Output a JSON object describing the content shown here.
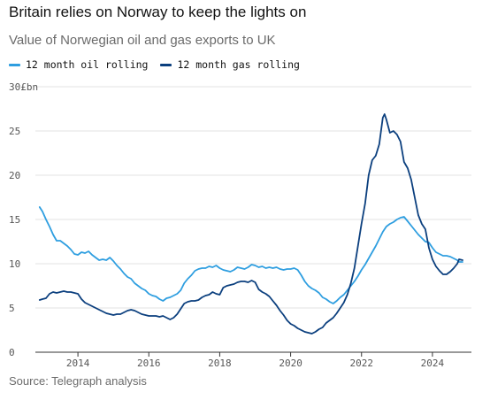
{
  "title": "Britain relies on Norway to keep the lights on",
  "subtitle": "Value of Norwegian oil and gas exports to UK",
  "source": "Source: Telegraph analysis",
  "colors": {
    "oil": "#2e9ee0",
    "gas": "#0b3f7e",
    "grid": "#e3e3e3",
    "axis": "#333333"
  },
  "chart_data": {
    "type": "line",
    "ylim": [
      0,
      30
    ],
    "xlim": [
      2012.8,
      2025.1
    ],
    "y_ticks": [
      0,
      5,
      10,
      15,
      20,
      25,
      30
    ],
    "y_tick_labels": [
      "0",
      "5",
      "10",
      "15",
      "20",
      "25",
      "30£bn"
    ],
    "x_ticks": [
      2014,
      2016,
      2018,
      2020,
      2022,
      2024
    ],
    "x_tick_labels": [
      "2014",
      "2016",
      "2018",
      "2020",
      "2022",
      "2024"
    ],
    "series": [
      {
        "name": "12 month oil rolling",
        "color": "#2e9ee0",
        "points": [
          [
            2012.92,
            16.4
          ],
          [
            2013.0,
            15.9
          ],
          [
            2013.1,
            15.0
          ],
          [
            2013.2,
            14.2
          ],
          [
            2013.3,
            13.3
          ],
          [
            2013.4,
            12.6
          ],
          [
            2013.5,
            12.6
          ],
          [
            2013.6,
            12.3
          ],
          [
            2013.7,
            12.0
          ],
          [
            2013.8,
            11.6
          ],
          [
            2013.9,
            11.1
          ],
          [
            2014.0,
            11.0
          ],
          [
            2014.1,
            11.3
          ],
          [
            2014.2,
            11.2
          ],
          [
            2014.3,
            11.4
          ],
          [
            2014.4,
            11.0
          ],
          [
            2014.5,
            10.7
          ],
          [
            2014.6,
            10.4
          ],
          [
            2014.7,
            10.5
          ],
          [
            2014.8,
            10.4
          ],
          [
            2014.9,
            10.7
          ],
          [
            2015.0,
            10.3
          ],
          [
            2015.1,
            9.8
          ],
          [
            2015.2,
            9.4
          ],
          [
            2015.3,
            8.9
          ],
          [
            2015.4,
            8.5
          ],
          [
            2015.5,
            8.3
          ],
          [
            2015.6,
            7.8
          ],
          [
            2015.7,
            7.5
          ],
          [
            2015.8,
            7.2
          ],
          [
            2015.9,
            7.0
          ],
          [
            2016.0,
            6.6
          ],
          [
            2016.1,
            6.4
          ],
          [
            2016.2,
            6.3
          ],
          [
            2016.3,
            6.0
          ],
          [
            2016.4,
            5.8
          ],
          [
            2016.5,
            6.1
          ],
          [
            2016.6,
            6.2
          ],
          [
            2016.7,
            6.4
          ],
          [
            2016.8,
            6.6
          ],
          [
            2016.9,
            7.0
          ],
          [
            2017.0,
            7.8
          ],
          [
            2017.1,
            8.3
          ],
          [
            2017.2,
            8.7
          ],
          [
            2017.3,
            9.2
          ],
          [
            2017.4,
            9.4
          ],
          [
            2017.5,
            9.5
          ],
          [
            2017.6,
            9.5
          ],
          [
            2017.7,
            9.7
          ],
          [
            2017.8,
            9.6
          ],
          [
            2017.9,
            9.8
          ],
          [
            2018.0,
            9.5
          ],
          [
            2018.1,
            9.3
          ],
          [
            2018.2,
            9.2
          ],
          [
            2018.3,
            9.1
          ],
          [
            2018.4,
            9.3
          ],
          [
            2018.5,
            9.6
          ],
          [
            2018.6,
            9.5
          ],
          [
            2018.7,
            9.4
          ],
          [
            2018.8,
            9.6
          ],
          [
            2018.9,
            9.9
          ],
          [
            2019.0,
            9.8
          ],
          [
            2019.1,
            9.6
          ],
          [
            2019.2,
            9.7
          ],
          [
            2019.3,
            9.5
          ],
          [
            2019.4,
            9.6
          ],
          [
            2019.5,
            9.5
          ],
          [
            2019.6,
            9.6
          ],
          [
            2019.7,
            9.4
          ],
          [
            2019.8,
            9.3
          ],
          [
            2019.9,
            9.4
          ],
          [
            2020.0,
            9.4
          ],
          [
            2020.1,
            9.5
          ],
          [
            2020.2,
            9.3
          ],
          [
            2020.3,
            8.7
          ],
          [
            2020.4,
            8.0
          ],
          [
            2020.5,
            7.5
          ],
          [
            2020.6,
            7.2
          ],
          [
            2020.7,
            7.0
          ],
          [
            2020.8,
            6.7
          ],
          [
            2020.9,
            6.2
          ],
          [
            2021.0,
            6.0
          ],
          [
            2021.1,
            5.7
          ],
          [
            2021.2,
            5.5
          ],
          [
            2021.3,
            5.8
          ],
          [
            2021.4,
            6.2
          ],
          [
            2021.5,
            6.5
          ],
          [
            2021.6,
            7.0
          ],
          [
            2021.7,
            7.5
          ],
          [
            2021.8,
            8.0
          ],
          [
            2021.9,
            8.6
          ],
          [
            2022.0,
            9.3
          ],
          [
            2022.1,
            9.9
          ],
          [
            2022.2,
            10.6
          ],
          [
            2022.3,
            11.3
          ],
          [
            2022.4,
            12.0
          ],
          [
            2022.5,
            12.8
          ],
          [
            2022.6,
            13.6
          ],
          [
            2022.7,
            14.2
          ],
          [
            2022.8,
            14.5
          ],
          [
            2022.9,
            14.7
          ],
          [
            2023.0,
            15.0
          ],
          [
            2023.1,
            15.2
          ],
          [
            2023.2,
            15.3
          ],
          [
            2023.3,
            14.8
          ],
          [
            2023.4,
            14.3
          ],
          [
            2023.5,
            13.8
          ],
          [
            2023.6,
            13.3
          ],
          [
            2023.7,
            12.9
          ],
          [
            2023.8,
            12.5
          ],
          [
            2023.9,
            12.4
          ],
          [
            2024.0,
            11.8
          ],
          [
            2024.1,
            11.3
          ],
          [
            2024.2,
            11.1
          ],
          [
            2024.3,
            10.9
          ],
          [
            2024.4,
            10.9
          ],
          [
            2024.5,
            10.8
          ],
          [
            2024.6,
            10.6
          ],
          [
            2024.7,
            10.4
          ],
          [
            2024.75,
            10.2
          ],
          [
            2024.85,
            10.2
          ]
        ]
      },
      {
        "name": "12 month gas rolling",
        "color": "#0b3f7e",
        "points": [
          [
            2012.92,
            5.9
          ],
          [
            2013.0,
            6.0
          ],
          [
            2013.1,
            6.1
          ],
          [
            2013.2,
            6.6
          ],
          [
            2013.3,
            6.8
          ],
          [
            2013.4,
            6.7
          ],
          [
            2013.5,
            6.8
          ],
          [
            2013.6,
            6.9
          ],
          [
            2013.7,
            6.8
          ],
          [
            2013.8,
            6.8
          ],
          [
            2013.9,
            6.7
          ],
          [
            2014.0,
            6.6
          ],
          [
            2014.1,
            6.0
          ],
          [
            2014.2,
            5.6
          ],
          [
            2014.3,
            5.4
          ],
          [
            2014.4,
            5.2
          ],
          [
            2014.5,
            5.0
          ],
          [
            2014.6,
            4.8
          ],
          [
            2014.7,
            4.6
          ],
          [
            2014.8,
            4.4
          ],
          [
            2014.9,
            4.3
          ],
          [
            2015.0,
            4.2
          ],
          [
            2015.1,
            4.3
          ],
          [
            2015.2,
            4.3
          ],
          [
            2015.3,
            4.5
          ],
          [
            2015.4,
            4.7
          ],
          [
            2015.5,
            4.8
          ],
          [
            2015.6,
            4.7
          ],
          [
            2015.7,
            4.5
          ],
          [
            2015.8,
            4.3
          ],
          [
            2015.9,
            4.2
          ],
          [
            2016.0,
            4.1
          ],
          [
            2016.1,
            4.1
          ],
          [
            2016.2,
            4.1
          ],
          [
            2016.3,
            4.0
          ],
          [
            2016.4,
            4.1
          ],
          [
            2016.5,
            3.9
          ],
          [
            2016.6,
            3.7
          ],
          [
            2016.7,
            3.9
          ],
          [
            2016.8,
            4.3
          ],
          [
            2016.9,
            4.9
          ],
          [
            2017.0,
            5.5
          ],
          [
            2017.1,
            5.7
          ],
          [
            2017.2,
            5.8
          ],
          [
            2017.3,
            5.8
          ],
          [
            2017.4,
            5.9
          ],
          [
            2017.5,
            6.2
          ],
          [
            2017.6,
            6.4
          ],
          [
            2017.7,
            6.5
          ],
          [
            2017.8,
            6.8
          ],
          [
            2017.9,
            6.6
          ],
          [
            2018.0,
            6.5
          ],
          [
            2018.1,
            7.3
          ],
          [
            2018.2,
            7.5
          ],
          [
            2018.3,
            7.6
          ],
          [
            2018.4,
            7.7
          ],
          [
            2018.5,
            7.9
          ],
          [
            2018.6,
            8.0
          ],
          [
            2018.7,
            8.0
          ],
          [
            2018.8,
            7.9
          ],
          [
            2018.9,
            8.1
          ],
          [
            2019.0,
            7.9
          ],
          [
            2019.1,
            7.1
          ],
          [
            2019.2,
            6.8
          ],
          [
            2019.3,
            6.6
          ],
          [
            2019.4,
            6.3
          ],
          [
            2019.5,
            5.8
          ],
          [
            2019.6,
            5.3
          ],
          [
            2019.7,
            4.7
          ],
          [
            2019.8,
            4.2
          ],
          [
            2019.9,
            3.6
          ],
          [
            2020.0,
            3.2
          ],
          [
            2020.1,
            3.0
          ],
          [
            2020.2,
            2.7
          ],
          [
            2020.3,
            2.5
          ],
          [
            2020.4,
            2.3
          ],
          [
            2020.5,
            2.2
          ],
          [
            2020.6,
            2.1
          ],
          [
            2020.7,
            2.3
          ],
          [
            2020.8,
            2.6
          ],
          [
            2020.9,
            2.8
          ],
          [
            2021.0,
            3.3
          ],
          [
            2021.1,
            3.6
          ],
          [
            2021.2,
            3.9
          ],
          [
            2021.3,
            4.4
          ],
          [
            2021.4,
            5.0
          ],
          [
            2021.5,
            5.6
          ],
          [
            2021.6,
            6.5
          ],
          [
            2021.7,
            7.8
          ],
          [
            2021.8,
            9.5
          ],
          [
            2021.9,
            12.0
          ],
          [
            2022.0,
            14.5
          ],
          [
            2022.1,
            16.8
          ],
          [
            2022.2,
            20.0
          ],
          [
            2022.3,
            21.7
          ],
          [
            2022.4,
            22.2
          ],
          [
            2022.5,
            23.5
          ],
          [
            2022.6,
            26.5
          ],
          [
            2022.65,
            26.9
          ],
          [
            2022.7,
            26.3
          ],
          [
            2022.8,
            24.8
          ],
          [
            2022.9,
            25.0
          ],
          [
            2023.0,
            24.6
          ],
          [
            2023.1,
            23.8
          ],
          [
            2023.2,
            21.5
          ],
          [
            2023.3,
            20.8
          ],
          [
            2023.4,
            19.5
          ],
          [
            2023.5,
            17.5
          ],
          [
            2023.6,
            15.5
          ],
          [
            2023.7,
            14.5
          ],
          [
            2023.8,
            13.9
          ],
          [
            2023.9,
            11.8
          ],
          [
            2024.0,
            10.5
          ],
          [
            2024.1,
            9.7
          ],
          [
            2024.2,
            9.2
          ],
          [
            2024.3,
            8.8
          ],
          [
            2024.4,
            8.8
          ],
          [
            2024.5,
            9.1
          ],
          [
            2024.6,
            9.5
          ],
          [
            2024.7,
            10.0
          ],
          [
            2024.75,
            10.5
          ],
          [
            2024.85,
            10.4
          ]
        ]
      }
    ]
  }
}
